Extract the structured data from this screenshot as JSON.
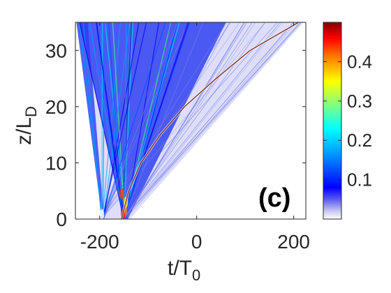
{
  "chart_data": {
    "type": "heatmap",
    "panel_label": "(c)",
    "xlabel": "t/T",
    "xlabel_sub": "0",
    "ylabel": "z/L",
    "ylabel_sub": "D",
    "xlim": [
      -250,
      225
    ],
    "ylim": [
      0,
      35
    ],
    "xticks": [
      -200,
      0,
      200
    ],
    "yticks": [
      0,
      10,
      20,
      30
    ],
    "colorbar": {
      "colormap": "jet",
      "range": [
        0,
        0.5
      ],
      "ticks": [
        0.1,
        0.2,
        0.3,
        0.4
      ]
    },
    "features": {
      "sources_t": [
        -195,
        -150
      ],
      "fan_left_edge_t_at_zmax": -245,
      "fan_right_edge_t_at_zmax": 220,
      "curved_soliton_track": [
        [
          -155,
          0
        ],
        [
          -140,
          5
        ],
        [
          -115,
          10
        ],
        [
          -75,
          15
        ],
        [
          -25,
          20
        ],
        [
          40,
          25
        ],
        [
          110,
          30
        ],
        [
          210,
          35
        ]
      ],
      "colors": {
        "background": "#ffffff",
        "axis": "#262626"
      }
    }
  }
}
